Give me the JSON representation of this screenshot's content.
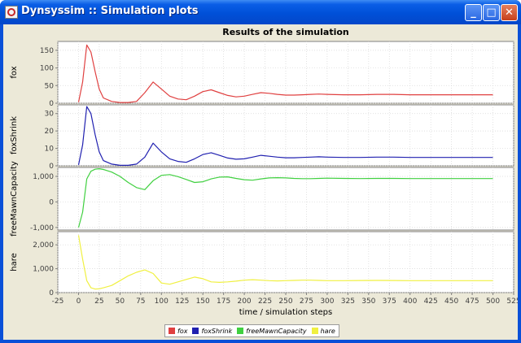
{
  "window": {
    "title": "Dynsyssim :: Simulation plots",
    "minimize_glyph": "_",
    "maximize_glyph": "□",
    "close_glyph": "✕"
  },
  "colors": {
    "titlebar": "#0050d8",
    "panel_bg": "#ece9d8",
    "plot_bg": "#ffffff",
    "grid": "#d6d6d6"
  },
  "chart_data": {
    "type": "line",
    "title": "Results of the simulation",
    "xlabel": "time / simulation steps",
    "xlim": [
      -25,
      525
    ],
    "x_ticks": [
      "-25",
      "0",
      "25",
      "50",
      "75",
      "100",
      "125",
      "150",
      "175",
      "200",
      "225",
      "250",
      "275",
      "300",
      "325",
      "350",
      "375",
      "400",
      "425",
      "450",
      "475",
      "500",
      "525"
    ],
    "x": [
      0,
      5,
      10,
      15,
      20,
      25,
      30,
      40,
      50,
      60,
      70,
      80,
      90,
      100,
      110,
      120,
      130,
      140,
      150,
      160,
      170,
      180,
      190,
      200,
      210,
      220,
      230,
      240,
      250,
      260,
      270,
      280,
      290,
      300,
      320,
      340,
      360,
      380,
      400,
      420,
      440,
      460,
      480,
      500
    ],
    "grid": true,
    "legend_position": "bottom",
    "legend": [
      "fox",
      "foxShrink",
      "freeMawnCapacity",
      "hare"
    ],
    "series": [
      {
        "name": "fox",
        "ylabel": "fox",
        "color": "#e04040",
        "ylim": [
          0,
          175
        ],
        "y_ticks": [
          "0",
          "50",
          "100",
          "150"
        ],
        "values": [
          3,
          60,
          165,
          145,
          90,
          40,
          15,
          5,
          2,
          2,
          5,
          30,
          60,
          40,
          20,
          12,
          10,
          20,
          33,
          38,
          30,
          22,
          18,
          20,
          25,
          30,
          28,
          25,
          23,
          23,
          24,
          25,
          26,
          25,
          24,
          24,
          25,
          25,
          24,
          24,
          24,
          24,
          24,
          24
        ]
      },
      {
        "name": "foxShrink",
        "ylabel": "foxShrink",
        "color": "#2020b0",
        "ylim": [
          0,
          35
        ],
        "y_ticks": [
          "0",
          "10",
          "20",
          "30"
        ],
        "values": [
          0.5,
          12,
          34,
          30,
          18,
          8,
          3,
          1,
          0.3,
          0.3,
          1,
          5,
          13,
          8,
          4,
          2.5,
          2,
          4,
          6.5,
          7.5,
          6,
          4.5,
          3.8,
          4,
          5,
          6,
          5.5,
          5,
          4.6,
          4.6,
          4.8,
          5,
          5.2,
          5,
          4.8,
          4.8,
          5,
          5,
          4.8,
          4.8,
          4.8,
          4.8,
          4.8,
          4.8
        ]
      },
      {
        "name": "freeMawnCapacity",
        "ylabel": "freeMawnCapacity",
        "color": "#40d040",
        "ylim": [
          -1100,
          1350
        ],
        "y_ticks": [
          "-1,000",
          "0",
          "1,000"
        ],
        "values": [
          -1000,
          -400,
          900,
          1200,
          1280,
          1300,
          1270,
          1170,
          1000,
          760,
          560,
          480,
          830,
          1040,
          1070,
          990,
          880,
          760,
          790,
          900,
          970,
          980,
          920,
          870,
          850,
          900,
          940,
          950,
          940,
          920,
          910,
          910,
          920,
          930,
          920,
          915,
          920,
          920,
          915,
          915,
          915,
          915,
          915,
          915
        ]
      },
      {
        "name": "hare",
        "ylabel": "hare",
        "color": "#f0f040",
        "ylim": [
          0,
          2550
        ],
        "y_ticks": [
          "0",
          "1,000",
          "2,000"
        ],
        "values": [
          2400,
          1400,
          500,
          200,
          150,
          160,
          200,
          300,
          500,
          700,
          850,
          950,
          800,
          400,
          350,
          450,
          550,
          650,
          580,
          450,
          430,
          450,
          480,
          520,
          540,
          520,
          500,
          490,
          500,
          510,
          520,
          520,
          510,
          500,
          500,
          505,
          510,
          505,
          500,
          500,
          500,
          500,
          500,
          500
        ]
      }
    ]
  }
}
